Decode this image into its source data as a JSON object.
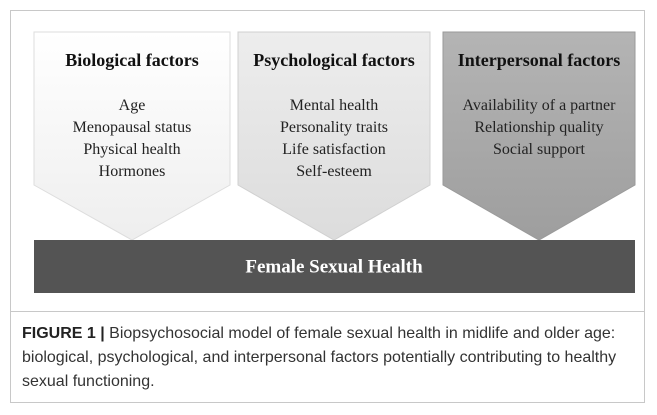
{
  "factors": [
    {
      "title": "Biological factors",
      "items": [
        "Age",
        "Menopausal status",
        "Physical health",
        "Hormones"
      ]
    },
    {
      "title": "Psychological factors",
      "items": [
        "Mental health",
        "Personality traits",
        "Life satisfaction",
        "Self-esteem"
      ]
    },
    {
      "title": "Interpersonal factors",
      "items": [
        "Availability of a partner",
        "Relationship quality",
        "Social support"
      ]
    }
  ],
  "bar": {
    "label": "Female Sexual Health"
  },
  "caption": {
    "label": "FIGURE 1 |",
    "text": "Biopsychosocial model of female sexual health in midlife and older age: biological, psychological, and interpersonal factors potentially contributing to healthy sexual functioning."
  }
}
